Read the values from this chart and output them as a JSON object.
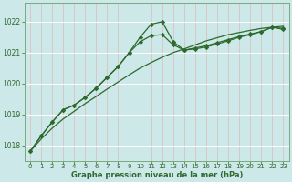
{
  "x": [
    0,
    1,
    2,
    3,
    4,
    5,
    6,
    7,
    8,
    9,
    10,
    11,
    12,
    13,
    14,
    15,
    16,
    17,
    18,
    19,
    20,
    21,
    22,
    23
  ],
  "y_straight": [
    1017.8,
    1018.2,
    1018.55,
    1018.85,
    1019.1,
    1019.35,
    1019.58,
    1019.82,
    1020.05,
    1020.28,
    1020.5,
    1020.68,
    1020.85,
    1021.0,
    1021.12,
    1021.25,
    1021.38,
    1021.48,
    1021.58,
    1021.65,
    1021.72,
    1021.78,
    1021.82,
    1021.85
  ],
  "y_mid": [
    1017.8,
    1018.3,
    1018.75,
    1019.15,
    1019.3,
    1019.55,
    1019.85,
    1020.2,
    1020.55,
    1021.0,
    1021.35,
    1021.55,
    1021.58,
    1021.25,
    1021.08,
    1021.15,
    1021.22,
    1021.32,
    1021.42,
    1021.52,
    1021.6,
    1021.68,
    1021.82,
    1021.78
  ],
  "y_peak": [
    1017.8,
    1018.3,
    1018.75,
    1019.15,
    1019.3,
    1019.55,
    1019.85,
    1020.2,
    1020.55,
    1021.0,
    1021.5,
    1021.92,
    1022.0,
    1021.35,
    1021.08,
    1021.12,
    1021.18,
    1021.28,
    1021.38,
    1021.5,
    1021.58,
    1021.68,
    1021.82,
    1021.75
  ],
  "bg_color": "#cce8e8",
  "grid_color_major": "#ffffff",
  "grid_color_minor": "#e8c8c8",
  "line_color": "#2d6a2d",
  "xlabel": "Graphe pression niveau de la mer (hPa)",
  "ylim": [
    1017.5,
    1022.6
  ],
  "yticks": [
    1018,
    1019,
    1020,
    1021,
    1022
  ],
  "xticks": [
    0,
    1,
    2,
    3,
    4,
    5,
    6,
    7,
    8,
    9,
    10,
    11,
    12,
    13,
    14,
    15,
    16,
    17,
    18,
    19,
    20,
    21,
    22,
    23
  ]
}
